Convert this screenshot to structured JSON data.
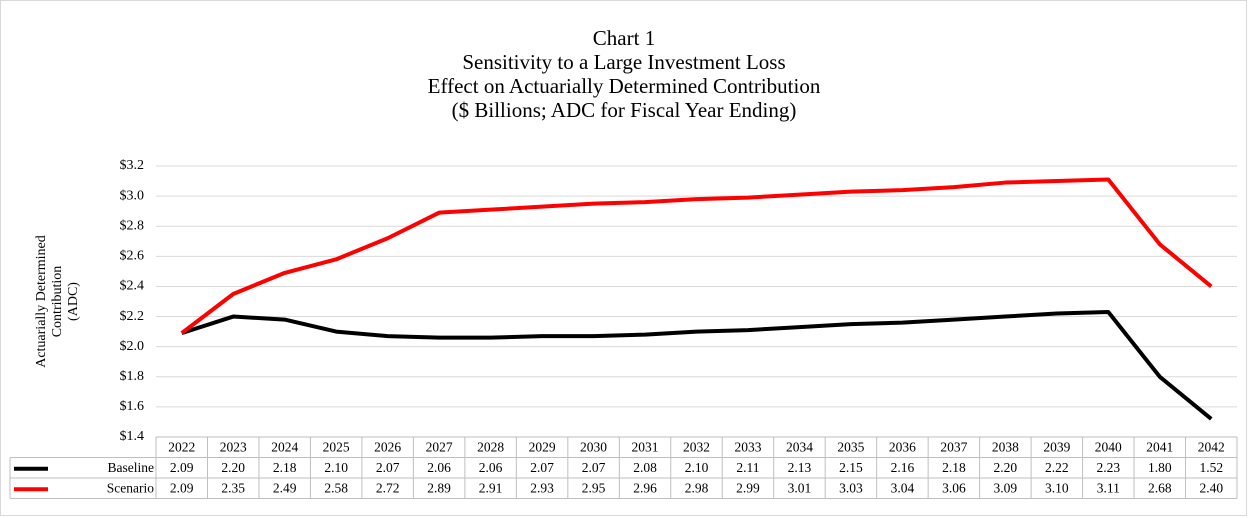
{
  "chart_data": {
    "type": "line",
    "title": [
      "Chart 1",
      "Sensitivity to a Large Investment Loss",
      "Effect on Actuarially Determined Contribution",
      "($ Billions; ADC for Fiscal Year Ending)"
    ],
    "y_label": [
      "Actuarially Determined",
      "Contribution",
      "(ADC)"
    ],
    "categories": [
      "2022",
      "2023",
      "2024",
      "2025",
      "2026",
      "2027",
      "2028",
      "2029",
      "2030",
      "2031",
      "2032",
      "2033",
      "2034",
      "2035",
      "2036",
      "2037",
      "2038",
      "2039",
      "2040",
      "2041",
      "2042"
    ],
    "series": [
      {
        "name": "Baseline",
        "color": "#000000",
        "values": [
          2.09,
          2.2,
          2.18,
          2.1,
          2.07,
          2.06,
          2.06,
          2.07,
          2.07,
          2.08,
          2.1,
          2.11,
          2.13,
          2.15,
          2.16,
          2.18,
          2.2,
          2.22,
          2.23,
          1.8,
          1.52
        ],
        "value_labels": [
          "2.09",
          "2.20",
          "2.18",
          "2.10",
          "2.07",
          "2.06",
          "2.06",
          "2.07",
          "2.07",
          "2.08",
          "2.10",
          "2.11",
          "2.13",
          "2.15",
          "2.16",
          "2.18",
          "2.20",
          "2.22",
          "2.23",
          "1.80",
          "1.52"
        ]
      },
      {
        "name": "Scenario",
        "color": "#ff0000",
        "values": [
          2.09,
          2.35,
          2.49,
          2.58,
          2.72,
          2.89,
          2.91,
          2.93,
          2.95,
          2.96,
          2.98,
          2.99,
          3.01,
          3.03,
          3.04,
          3.06,
          3.09,
          3.1,
          3.11,
          2.68,
          2.4
        ],
        "value_labels": [
          "2.09",
          "2.35",
          "2.49",
          "2.58",
          "2.72",
          "2.89",
          "2.91",
          "2.93",
          "2.95",
          "2.96",
          "2.98",
          "2.99",
          "3.01",
          "3.03",
          "3.04",
          "3.06",
          "3.09",
          "3.10",
          "3.11",
          "2.68",
          "2.40"
        ]
      }
    ],
    "ylim": [
      1.4,
      3.2
    ],
    "yticks": [
      {
        "value": 1.4,
        "label": "$1.4"
      },
      {
        "value": 1.6,
        "label": "$1.6"
      },
      {
        "value": 1.8,
        "label": "$1.8"
      },
      {
        "value": 2.0,
        "label": "$2.0"
      },
      {
        "value": 2.2,
        "label": "$2.2"
      },
      {
        "value": 2.4,
        "label": "$2.4"
      },
      {
        "value": 2.6,
        "label": "$2.6"
      },
      {
        "value": 2.8,
        "label": "$2.8"
      },
      {
        "value": 3.0,
        "label": "$3.0"
      },
      {
        "value": 3.2,
        "label": "$3.2"
      }
    ],
    "grid": true
  }
}
